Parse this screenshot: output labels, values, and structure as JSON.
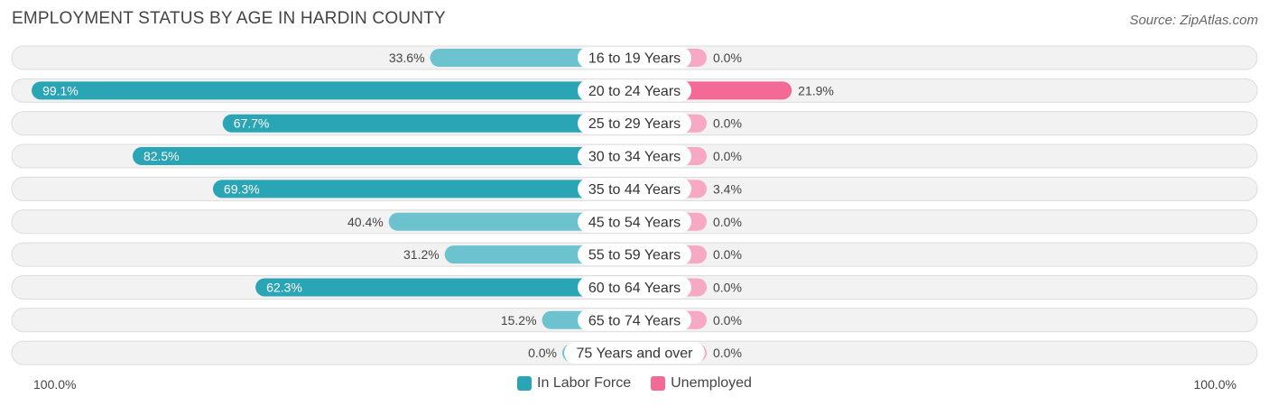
{
  "title": "EMPLOYMENT STATUS BY AGE IN HARDIN COUNTY",
  "source": "Source: ZipAtlas.com",
  "colors": {
    "labor_force": "#2aa5b5",
    "labor_force_light": "#6cc3cf",
    "unemployed": "#f46a96",
    "unemployed_light": "#f7a8c2",
    "row_bg": "#f2f2f2",
    "row_border": "#dcdcdc"
  },
  "axis": {
    "left_label": "100.0%",
    "right_label": "100.0%"
  },
  "legend": [
    {
      "label": "In Labor Force",
      "color": "#2aa5b5"
    },
    {
      "label": "Unemployed",
      "color": "#f46a96"
    }
  ],
  "chart_data": {
    "type": "bar",
    "categories": [
      "16 to 19 Years",
      "20 to 24 Years",
      "25 to 29 Years",
      "30 to 34 Years",
      "35 to 44 Years",
      "45 to 54 Years",
      "55 to 59 Years",
      "60 to 64 Years",
      "65 to 74 Years",
      "75 Years and over"
    ],
    "series": [
      {
        "name": "In Labor Force",
        "values": [
          33.6,
          99.1,
          67.7,
          82.5,
          69.3,
          40.4,
          31.2,
          62.3,
          15.2,
          0.0
        ]
      },
      {
        "name": "Unemployed",
        "values": [
          0.0,
          21.9,
          0.0,
          0.0,
          3.4,
          0.0,
          0.0,
          0.0,
          0.0,
          0.0
        ]
      }
    ],
    "xlim": [
      -100,
      100
    ]
  }
}
